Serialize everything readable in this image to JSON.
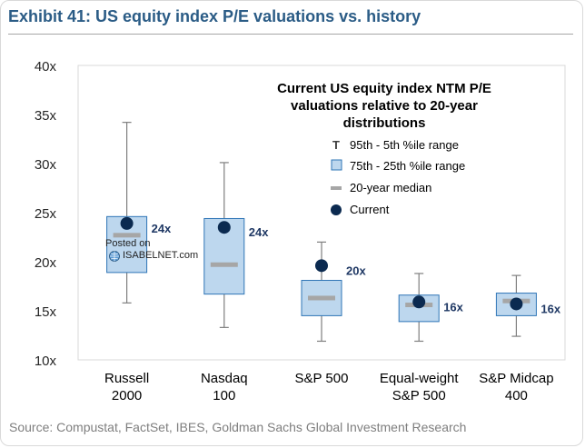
{
  "title": "Exhibit 41: US equity index P/E valuations vs. history",
  "source": "Source: Compustat, FactSet, IBES, Goldman Sachs Global Investment Research",
  "watermark": {
    "line1": "Posted on",
    "line2": "ISABELNET.com"
  },
  "colors": {
    "box_fill": "#bdd7ee",
    "box_stroke": "#2e75b6",
    "median": "#a6a6a6",
    "current": "#0b2a50",
    "whisker": "#7f7f7f",
    "title": "#2b5c86"
  },
  "chart_data": {
    "type": "box",
    "title": "Current US equity index NTM P/E valuations relative to 20-year distributions",
    "title_lines": [
      "Current US equity index NTM P/E",
      "valuations relative to 20-year",
      "distributions"
    ],
    "ylim": [
      10,
      40
    ],
    "yticks": [
      "10x",
      "15x",
      "20x",
      "25x",
      "30x",
      "35x",
      "40x"
    ],
    "ytick_values": [
      10,
      15,
      20,
      25,
      30,
      35,
      40
    ],
    "legend": {
      "placement": "top-right",
      "items": [
        {
          "marker": "T",
          "label": "95th - 5th %ile range"
        },
        {
          "marker": "box",
          "label": "75th - 25th %ile range"
        },
        {
          "marker": "dash",
          "label": "20-year median"
        },
        {
          "marker": "dot",
          "label": "Current"
        }
      ]
    },
    "categories": [
      {
        "label": [
          "Russell",
          "2000"
        ],
        "p95": 34.2,
        "p75": 24.6,
        "median": 22.7,
        "p25": 18.9,
        "p5": 15.8,
        "current": 23.9,
        "current_label": "24x"
      },
      {
        "label": [
          "Nasdaq",
          "100"
        ],
        "p95": 30.1,
        "p75": 24.4,
        "median": 19.7,
        "p25": 16.7,
        "p5": 13.3,
        "current": 23.5,
        "current_label": "24x"
      },
      {
        "label": [
          "S&P 500"
        ],
        "p95": 22.0,
        "p75": 18.1,
        "median": 16.3,
        "p25": 14.5,
        "p5": 11.9,
        "current": 19.6,
        "current_label": "20x"
      },
      {
        "label": [
          "Equal-weight",
          "S&P 500"
        ],
        "p95": 18.8,
        "p75": 16.6,
        "median": 15.6,
        "p25": 13.9,
        "p5": 11.9,
        "current": 15.9,
        "current_label": "16x"
      },
      {
        "label": [
          "S&P Midcap",
          "400"
        ],
        "p95": 18.6,
        "p75": 16.8,
        "median": 16.0,
        "p25": 14.5,
        "p5": 12.4,
        "current": 15.7,
        "current_label": "16x"
      }
    ]
  }
}
